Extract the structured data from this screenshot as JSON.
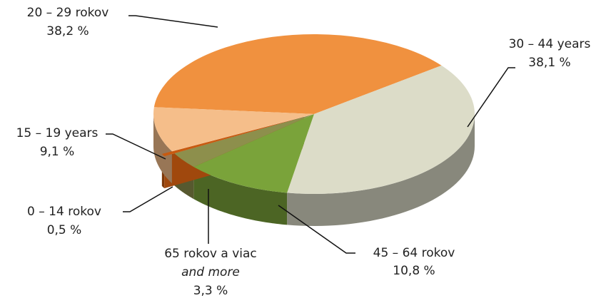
{
  "chart_data": {
    "type": "pie",
    "categories": [
      "20 – 29 rokov",
      "30 – 44 years",
      "45 – 64 rokov",
      "65 rokov a viac",
      "0 – 14 rokov",
      "15 – 19 years"
    ],
    "values": [
      38.2,
      38.1,
      10.8,
      3.3,
      0.5,
      9.1
    ],
    "value_labels": [
      "38,2 %",
      "38,1 %",
      "10,8 %",
      "3,3 %",
      "0,5 %",
      "9,1 %"
    ],
    "colors": [
      "#f0913f",
      "#dcdcc8",
      "#7aa33a",
      "#8d8f4c",
      "#c85a10",
      "#f5be8a"
    ],
    "annotations": [
      "and more"
    ]
  }
}
